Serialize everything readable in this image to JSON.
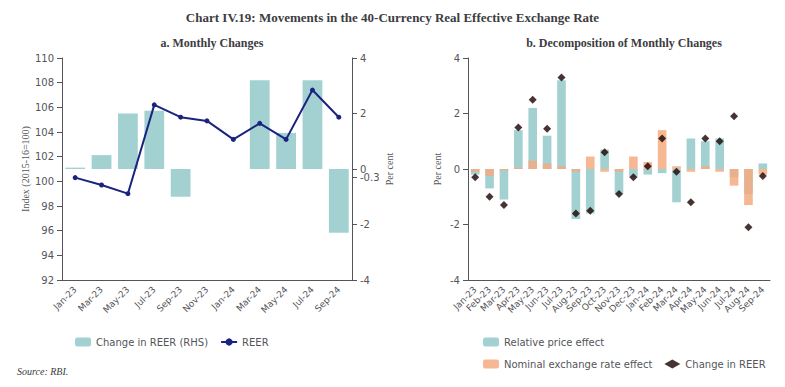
{
  "title": "Chart IV.19: Movements in the 40-Currency Real Effective Exchange Rate",
  "annotations": [
    "Source: RBI."
  ],
  "chart_data": [
    {
      "type": "bar",
      "title": "a. Monthly Changes",
      "categories": [
        "Jan-23",
        "Mar-23",
        "May-23",
        "Jul-23",
        "Sep-23",
        "Nov-23",
        "Jan-24",
        "Mar-24",
        "May-24",
        "Jul-24",
        "Sep-24"
      ],
      "series": [
        {
          "name": "Change in REER (RHS)",
          "type": "bar",
          "axis": "y2",
          "color": "#93c9c9",
          "values": [
            0.05,
            0.5,
            2.0,
            2.1,
            -1.0,
            0.0,
            0.0,
            3.2,
            1.3,
            3.2,
            -2.3
          ]
        },
        {
          "name": "REER",
          "type": "line",
          "color": "#1a237e",
          "marker": "circle",
          "values": [
            100.3,
            99.7,
            99.0,
            106.2,
            105.2,
            104.9,
            103.4,
            104.7,
            103.4,
            107.4,
            105.2
          ]
        }
      ],
      "ylabel": "Index (2015-16=100)",
      "y2label": "Per cent",
      "ylim": [
        92,
        110
      ],
      "yticks": [
        92,
        94,
        96,
        98,
        100,
        102,
        104,
        106,
        108,
        110
      ],
      "y2lim": [
        -4,
        4
      ],
      "y2ticks": [
        -4,
        -2,
        -0.3,
        0,
        2,
        4
      ],
      "grid": false,
      "legend": "bottom",
      "stacked": false,
      "data_labels": false
    },
    {
      "type": "bar",
      "title": "b. Decomposition of Monthly Changes",
      "categories": [
        "Jan-23",
        "Feb-23",
        "Mar-23",
        "Apr-23",
        "May-23",
        "Jun-23",
        "Jul-23",
        "Aug-23",
        "Sep-23",
        "Oct-23",
        "Nov-23",
        "Dec-23",
        "Jan-24",
        "Feb-24",
        "Mar-24",
        "Apr-24",
        "May-24",
        "Jun-24",
        "Jul-24",
        "Aug-24",
        "Sep-24"
      ],
      "series": [
        {
          "name": "Relative price effect",
          "type": "bar",
          "color": "#93c9c9",
          "values": [
            -0.2,
            -0.7,
            -1.1,
            1.4,
            2.2,
            1.2,
            3.2,
            -1.8,
            -1.6,
            0.7,
            -0.9,
            -0.3,
            -0.2,
            -0.15,
            -1.2,
            1.1,
            1.0,
            1.1,
            -0.3,
            -0.9,
            0.2
          ]
        },
        {
          "name": "Nominal exchange rate effect",
          "type": "bar",
          "color": "#f4aa80",
          "values": [
            -0.1,
            -0.25,
            -0.05,
            0.05,
            0.3,
            0.2,
            0.1,
            -0.1,
            0.45,
            -0.1,
            -0.1,
            0.45,
            0.25,
            1.4,
            0.1,
            -0.1,
            0.1,
            -0.1,
            -0.6,
            -1.3,
            -0.2
          ]
        },
        {
          "name": "Change in REER",
          "type": "scatter",
          "color": "#1a0000",
          "marker": "diamond",
          "values": [
            -0.3,
            -1.0,
            -1.3,
            1.5,
            2.5,
            1.45,
            3.3,
            -1.6,
            -1.5,
            0.6,
            -0.9,
            -0.3,
            0.1,
            1.1,
            -0.1,
            -1.2,
            1.1,
            1.0,
            1.9,
            -2.1,
            -0.25
          ]
        }
      ],
      "ylabel": "Per cent",
      "ylim": [
        -4,
        4
      ],
      "yticks": [
        -4,
        -2,
        0,
        2,
        4
      ],
      "grid": false,
      "legend": "bottom",
      "stacked": false,
      "data_labels": false
    }
  ]
}
